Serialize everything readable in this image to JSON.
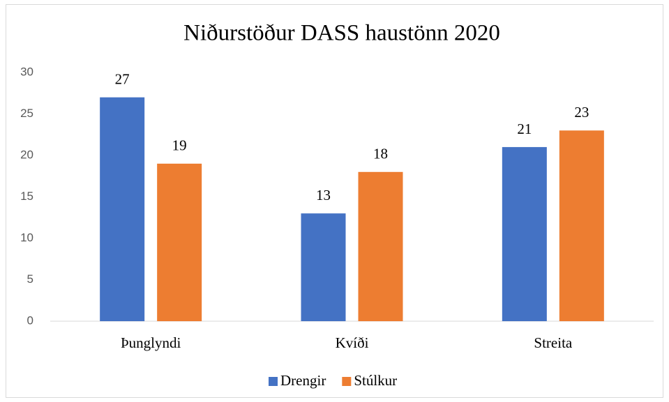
{
  "chart_data": {
    "type": "bar",
    "title": "Niðurstöður DASS haustönn 2020",
    "categories": [
      "Þunglyndi",
      "Kvíði",
      "Streita"
    ],
    "series": [
      {
        "name": "Drengir",
        "color": "#4472c4",
        "values": [
          27,
          13,
          21
        ]
      },
      {
        "name": "Stúlkur",
        "color": "#ed7d31",
        "values": [
          19,
          18,
          23
        ]
      }
    ],
    "ylim": [
      0,
      30
    ],
    "yticks": [
      0,
      5,
      10,
      15,
      20,
      25,
      30
    ],
    "grid": false,
    "legend": "bottom"
  }
}
